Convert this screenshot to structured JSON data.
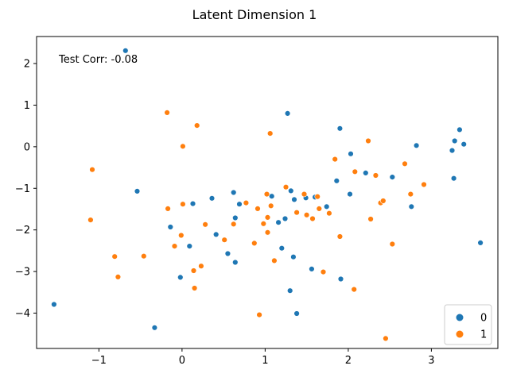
{
  "chart_data": {
    "type": "scatter",
    "title": "Latent Dimension 1",
    "annotation": "Test Corr: -0.08",
    "xlabel": "",
    "ylabel": "",
    "xlim": [
      -1.75,
      3.8
    ],
    "ylim": [
      -4.85,
      2.65
    ],
    "xticks": [
      -1,
      0,
      1,
      2,
      3
    ],
    "yticks": [
      2,
      1,
      0,
      -1,
      -2,
      -3,
      -4
    ],
    "xtick_labels": [
      "−1",
      "0",
      "1",
      "2",
      "3"
    ],
    "ytick_labels": [
      "2",
      "1",
      "0",
      "−1",
      "−2",
      "−3",
      "−4"
    ],
    "legend_position": "lower-right",
    "grid": false,
    "series": [
      {
        "name": "0",
        "color": "#1f77b4",
        "points": [
          [
            -0.68,
            2.31
          ],
          [
            -1.54,
            -3.79
          ],
          [
            -0.33,
            -4.35
          ],
          [
            -0.54,
            -1.07
          ],
          [
            -0.14,
            -1.93
          ],
          [
            -0.02,
            -3.14
          ],
          [
            0.09,
            -2.39
          ],
          [
            0.13,
            -1.37
          ],
          [
            0.36,
            -1.24
          ],
          [
            0.41,
            -2.11
          ],
          [
            0.55,
            -2.57
          ],
          [
            0.62,
            -1.1
          ],
          [
            0.64,
            -1.71
          ],
          [
            0.64,
            -2.78
          ],
          [
            0.69,
            -1.38
          ],
          [
            1.08,
            -1.19
          ],
          [
            1.16,
            -1.82
          ],
          [
            1.2,
            -2.44
          ],
          [
            1.24,
            -1.73
          ],
          [
            1.27,
            0.8
          ],
          [
            1.31,
            -1.06
          ],
          [
            1.3,
            -3.46
          ],
          [
            1.34,
            -2.65
          ],
          [
            1.35,
            -1.27
          ],
          [
            1.38,
            -4.01
          ],
          [
            1.49,
            -1.23
          ],
          [
            1.56,
            -2.94
          ],
          [
            1.6,
            -1.21
          ],
          [
            1.74,
            -1.44
          ],
          [
            1.86,
            -0.82
          ],
          [
            1.9,
            0.44
          ],
          [
            1.91,
            -3.18
          ],
          [
            2.02,
            -1.14
          ],
          [
            2.03,
            -0.17
          ],
          [
            2.21,
            -0.63
          ],
          [
            2.53,
            -0.73
          ],
          [
            2.76,
            -1.44
          ],
          [
            2.82,
            0.03
          ],
          [
            3.25,
            -0.09
          ],
          [
            3.27,
            -0.76
          ],
          [
            3.28,
            0.14
          ],
          [
            3.34,
            0.41
          ],
          [
            3.39,
            0.06
          ],
          [
            3.59,
            -2.31
          ]
        ]
      },
      {
        "name": "1",
        "color": "#ff7f0e",
        "points": [
          [
            -1.1,
            -1.76
          ],
          [
            -1.08,
            -0.55
          ],
          [
            -0.81,
            -2.64
          ],
          [
            -0.77,
            -3.13
          ],
          [
            -0.46,
            -2.63
          ],
          [
            -0.18,
            0.82
          ],
          [
            -0.17,
            -1.49
          ],
          [
            -0.09,
            -2.39
          ],
          [
            -0.01,
            -2.13
          ],
          [
            0.01,
            -1.38
          ],
          [
            0.01,
            0.01
          ],
          [
            0.14,
            -2.98
          ],
          [
            0.15,
            -3.4
          ],
          [
            0.18,
            0.51
          ],
          [
            0.23,
            -2.87
          ],
          [
            0.28,
            -1.87
          ],
          [
            0.51,
            -2.24
          ],
          [
            0.62,
            -1.86
          ],
          [
            0.77,
            -1.35
          ],
          [
            0.87,
            -2.32
          ],
          [
            0.91,
            -1.49
          ],
          [
            0.93,
            -4.04
          ],
          [
            0.98,
            -1.85
          ],
          [
            1.02,
            -1.14
          ],
          [
            1.03,
            -1.7
          ],
          [
            1.03,
            -2.06
          ],
          [
            1.06,
            0.32
          ],
          [
            1.07,
            -1.42
          ],
          [
            1.11,
            -2.74
          ],
          [
            1.25,
            -0.97
          ],
          [
            1.38,
            -1.58
          ],
          [
            1.47,
            -1.14
          ],
          [
            1.5,
            -1.64
          ],
          [
            1.57,
            -1.73
          ],
          [
            1.63,
            -1.2
          ],
          [
            1.65,
            -1.49
          ],
          [
            1.7,
            -3.01
          ],
          [
            1.77,
            -1.6
          ],
          [
            1.84,
            -0.3
          ],
          [
            1.9,
            -2.16
          ],
          [
            2.07,
            -3.43
          ],
          [
            2.08,
            -0.6
          ],
          [
            2.24,
            0.14
          ],
          [
            2.27,
            -1.74
          ],
          [
            2.33,
            -0.69
          ],
          [
            2.39,
            -1.35
          ],
          [
            2.42,
            -1.3
          ],
          [
            2.45,
            -4.61
          ],
          [
            2.53,
            -2.34
          ],
          [
            2.68,
            -0.41
          ],
          [
            2.75,
            -1.14
          ],
          [
            2.91,
            -0.91
          ]
        ]
      }
    ]
  }
}
